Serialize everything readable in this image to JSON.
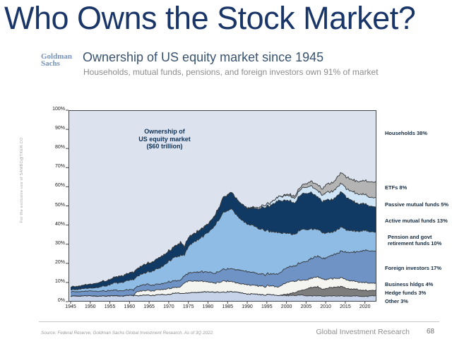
{
  "page": {
    "title": "Who Owns the Stock Market?",
    "logo": {
      "line1": "Goldman",
      "line2": "Sachs"
    },
    "heading": "Ownership of US equity market since 1945",
    "subheading": "Households, mutual funds, pensions, and foreign investors own 91% of market",
    "sidebar_note": "For the exclusive use of SAMBO@TKER.CO",
    "footer": {
      "source": "Source: Federal Reserve, Goldman Sachs Global Investment Research. As of 3Q 2022.",
      "division": "Global Investment Research",
      "page_number": "68"
    }
  },
  "chart_data": {
    "type": "area",
    "stacked": true,
    "units": "percent of US equity market",
    "annotation": [
      "Ownership of",
      "US equity market",
      "($60 trillion)"
    ],
    "xlim": [
      1945,
      2022.75
    ],
    "ylim": [
      0,
      100
    ],
    "grid": false,
    "legend_position": "right-outside",
    "x_ticks": [
      1945,
      1950,
      1955,
      1960,
      1965,
      1970,
      1975,
      1980,
      1985,
      1990,
      1995,
      2000,
      2005,
      2010,
      2015,
      2020
    ],
    "y_ticks": [
      "100%",
      "90%",
      "80%",
      "70%",
      "60%",
      "50%",
      "40%",
      "30%",
      "20%",
      "10%",
      "0%"
    ],
    "years": [
      1945,
      1947,
      1950,
      1952,
      1955,
      1957,
      1960,
      1961,
      1962,
      1964,
      1966,
      1968,
      1970,
      1971,
      1972,
      1973,
      1974,
      1975,
      1976,
      1978,
      1980,
      1982,
      1984,
      1986,
      1988,
      1990,
      1992,
      1994,
      1996,
      1998,
      2000,
      2001,
      2002,
      2004,
      2006,
      2008,
      2009,
      2010,
      2012,
      2014,
      2016,
      2018,
      2020,
      2021,
      2022.75
    ],
    "series": [
      {
        "name": "Other",
        "label": "Other 3%",
        "color": "#c6d3e8",
        "values": [
          3,
          3,
          3,
          3,
          3,
          3.1,
          3.2,
          3.2,
          3.2,
          3.3,
          3.5,
          3.7,
          4,
          4.1,
          4.2,
          4.3,
          4.4,
          4.6,
          4.8,
          5,
          5.2,
          5,
          5,
          5,
          4.6,
          4.2,
          3.9,
          3.7,
          3.5,
          3.4,
          3.4,
          3.4,
          3.3,
          3.2,
          3.1,
          3,
          3,
          3,
          3,
          3,
          3,
          2.9,
          2.8,
          2.8,
          3
        ]
      },
      {
        "name": "Hedge funds",
        "label": "Hedge funds 3%",
        "color": "#7d7d7d",
        "values": [
          0,
          0,
          0,
          0,
          0,
          0,
          0,
          0,
          0,
          0,
          0,
          0,
          0,
          0,
          0,
          0,
          0,
          0,
          0,
          0,
          0,
          0,
          0,
          0,
          0,
          0,
          0,
          0,
          0,
          0,
          0.6,
          1,
          1.5,
          2.5,
          4,
          4.5,
          3.6,
          4,
          4.2,
          4.6,
          4,
          3.6,
          3.2,
          3.1,
          3
        ]
      },
      {
        "name": "Business holdings",
        "label": "Business hldgs 4%",
        "color": "#f4f4f0",
        "values": [
          0,
          0,
          0,
          0,
          0,
          0,
          0,
          0,
          2.2,
          2.4,
          2.6,
          2.8,
          3,
          3,
          3.2,
          3.5,
          5.5,
          6.2,
          6,
          5.6,
          5.2,
          5,
          6,
          5,
          4.8,
          4.6,
          4.8,
          4.6,
          4.4,
          4.6,
          6,
          6.5,
          6,
          5,
          4.6,
          5,
          5.2,
          4.6,
          4.4,
          4.6,
          4.2,
          4,
          4,
          4,
          4
        ]
      },
      {
        "name": "Foreign investors",
        "label": "Foreign investors 17%",
        "color": "#7093c5",
        "values": [
          2.5,
          2.4,
          2.4,
          2.5,
          2.7,
          2.8,
          3,
          3,
          3,
          3,
          3,
          3.1,
          3.2,
          3.3,
          3.4,
          3.5,
          3.8,
          4.2,
          4.4,
          4.8,
          5,
          5.4,
          5.8,
          6.5,
          7,
          6.8,
          6.4,
          6.2,
          6.4,
          7,
          7.5,
          7.8,
          8,
          9.5,
          10.2,
          10.5,
          10.5,
          11.5,
          12.5,
          14,
          14.5,
          15.5,
          16.5,
          16.8,
          17
        ]
      },
      {
        "name": "Pension and govt retirement funds",
        "label": "Pension and govt retirement funds 10%",
        "color": "#8fbce5",
        "values": [
          1,
          1.2,
          1.6,
          2.2,
          3,
          3.8,
          4.8,
          5.2,
          5.5,
          6.2,
          7.5,
          9,
          11,
          12,
          12.8,
          13,
          10.5,
          14,
          15.5,
          17.5,
          20.5,
          25.5,
          29.5,
          31.5,
          27,
          25,
          24,
          23.5,
          22.5,
          21.5,
          18,
          17,
          16.5,
          17,
          15.5,
          14,
          13.5,
          13,
          12.3,
          12.4,
          11.5,
          10.6,
          10.2,
          10,
          10
        ]
      },
      {
        "name": "Active mutual funds",
        "label": "Active mutual funds 13%",
        "color": "#103a63",
        "values": [
          1.5,
          1.6,
          2,
          2.2,
          2.6,
          3,
          3.6,
          3.8,
          4,
          4.4,
          4.8,
          5.4,
          5.4,
          5.6,
          6.4,
          6.8,
          4.2,
          4.6,
          4.6,
          4.2,
          4.2,
          5.2,
          8,
          8.5,
          8,
          8,
          9.5,
          11.5,
          13.5,
          16.5,
          17.5,
          17,
          16,
          18.5,
          19,
          17,
          16,
          17,
          17.2,
          18,
          16.5,
          14.6,
          13.6,
          13.2,
          13
        ]
      },
      {
        "name": "Passive mutual funds",
        "label": "Passive mutual funds 5%",
        "color": "#cfe5f6",
        "values": [
          0,
          0,
          0,
          0,
          0,
          0,
          0,
          0,
          0,
          0,
          0,
          0,
          0,
          0,
          0,
          0,
          0,
          0,
          0,
          0,
          0,
          0,
          0,
          0,
          0,
          0.2,
          0.5,
          0.9,
          1.4,
          2,
          2.4,
          2.5,
          2.7,
          3,
          3.2,
          3.4,
          3.4,
          3.8,
          4.2,
          4.5,
          4.8,
          5,
          5,
          5,
          5
        ]
      },
      {
        "name": "ETFs",
        "label": "ETFs 8%",
        "color": "#b4b4b4",
        "values": [
          0,
          0,
          0,
          0,
          0,
          0,
          0,
          0,
          0,
          0,
          0,
          0,
          0,
          0,
          0,
          0,
          0,
          0,
          0,
          0,
          0,
          0,
          0,
          0,
          0,
          0,
          0,
          0,
          0,
          0,
          0.5,
          0.7,
          1,
          1.6,
          2.4,
          3.2,
          3,
          4,
          4.8,
          5.4,
          6,
          6.8,
          7.4,
          7.8,
          8
        ]
      }
    ],
    "households": {
      "label": "Households 38%",
      "color": "#dce3ef"
    }
  }
}
